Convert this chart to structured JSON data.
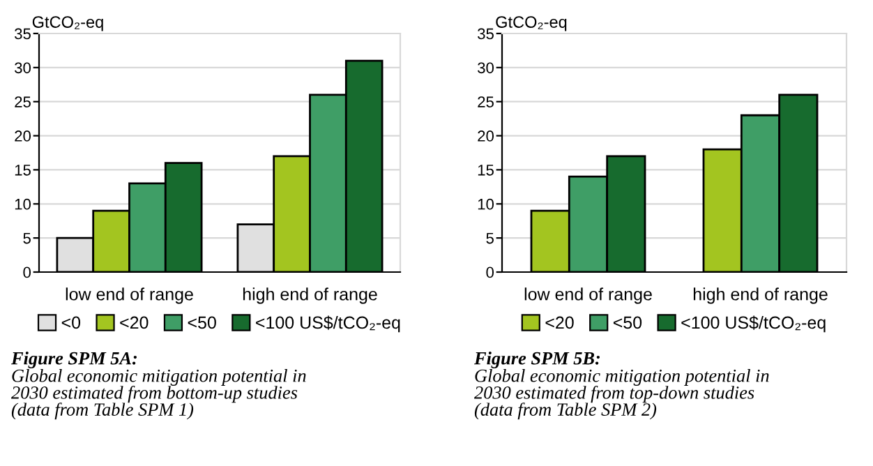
{
  "chart_data": [
    {
      "type": "bar",
      "ylabel": "GtCO₂-eq",
      "categories": [
        "low end of range",
        "high end of range"
      ],
      "ylim": [
        0,
        35
      ],
      "yticks": [
        0,
        5,
        10,
        15,
        20,
        25,
        30,
        35
      ],
      "grid": "y",
      "legend": "bottom",
      "series": [
        {
          "name": "<0",
          "color": "#e0e0e0",
          "values": [
            5,
            7
          ]
        },
        {
          "name": "<20",
          "color": "#a3c520",
          "values": [
            9,
            17
          ]
        },
        {
          "name": "<50",
          "color": "#3f9e66",
          "values": [
            13,
            26
          ]
        },
        {
          "name": "<100 US$/tCO₂-eq",
          "color": "#176b2e",
          "values": [
            16,
            31
          ]
        }
      ],
      "annotations": [
        "Figure SPM 5A:",
        "Global economic mitigation potential in\n2030 estimated from bottom-up studies\n(data from Table SPM 1)"
      ]
    },
    {
      "type": "bar",
      "ylabel": "GtCO₂-eq",
      "categories": [
        "low end of range",
        "high end of range"
      ],
      "ylim": [
        0,
        35
      ],
      "yticks": [
        0,
        5,
        10,
        15,
        20,
        25,
        30,
        35
      ],
      "grid": "y",
      "legend": "bottom",
      "series": [
        {
          "name": "<20",
          "color": "#a3c520",
          "values": [
            9,
            18
          ]
        },
        {
          "name": "<50",
          "color": "#3f9e66",
          "values": [
            14,
            23
          ]
        },
        {
          "name": "<100 US$/tCO₂-eq",
          "color": "#176b2e",
          "values": [
            17,
            26
          ]
        }
      ],
      "annotations": [
        "Figure SPM 5B:",
        "Global economic mitigation potential in\n2030 estimated from top-down studies\n(data from Table SPM 2)"
      ]
    }
  ]
}
